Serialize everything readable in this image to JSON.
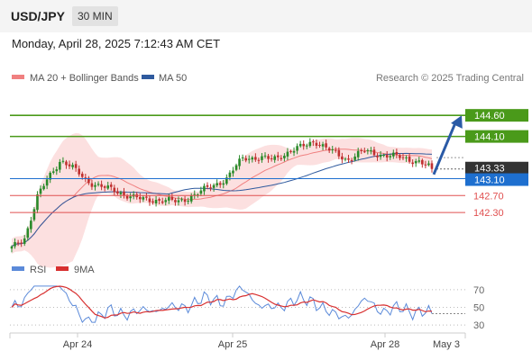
{
  "header": {
    "symbol": "USD/JPY",
    "timeframe": "30 MIN",
    "datetime": "Monday, April 28, 2025 7:12:43 AM CET"
  },
  "colors": {
    "resistance": "#4a9a1a",
    "support_band": "#e05050",
    "current_price": "#333333",
    "pivot": "#1e6fcf",
    "arrow": "#2a5aa6",
    "ma20": "#f08080",
    "ma50": "#2f5a9e",
    "bollinger_fill": "#fbd8d8",
    "candle_up": "#2a8a2a",
    "candle_down": "#c03030",
    "rsi": "#5b8ad9",
    "rsi_ma": "#d83030"
  },
  "chart_data": [
    {
      "type": "line",
      "series_kind": "candlestick",
      "legend": [
        {
          "name": "MA 20 + Bollinger Bands",
          "color": "#f08080"
        },
        {
          "name": "MA 50",
          "color": "#2f5a9e"
        }
      ],
      "legend_placement": "top-left",
      "credit": "Research © 2025 Trading Central",
      "ylim": [
        141.3,
        145.2
      ],
      "x_ticks": [
        "Apr 24",
        "Apr 25",
        "Apr 28",
        "May 3"
      ],
      "levels": [
        {
          "label": "144.60",
          "value": 144.6,
          "kind": "resistance"
        },
        {
          "label": "144.10",
          "value": 144.1,
          "kind": "resistance"
        },
        {
          "label": "143.33",
          "value": 143.33,
          "kind": "current"
        },
        {
          "label": "143.10",
          "value": 143.1,
          "kind": "pivot"
        },
        {
          "label": "142.70",
          "value": 142.7,
          "kind": "support"
        },
        {
          "label": "142.30",
          "value": 142.3,
          "kind": "support"
        }
      ],
      "arrow": {
        "from": 143.2,
        "to": 144.6
      }
    },
    {
      "type": "line",
      "legend": [
        {
          "name": "RSI",
          "color": "#5b8ad9"
        },
        {
          "name": "9MA",
          "color": "#d83030"
        }
      ],
      "legend_placement": "top-left",
      "ylim": [
        25,
        80
      ],
      "y_ticks": [
        "70",
        "50",
        "30"
      ],
      "grid": "dotted"
    }
  ]
}
